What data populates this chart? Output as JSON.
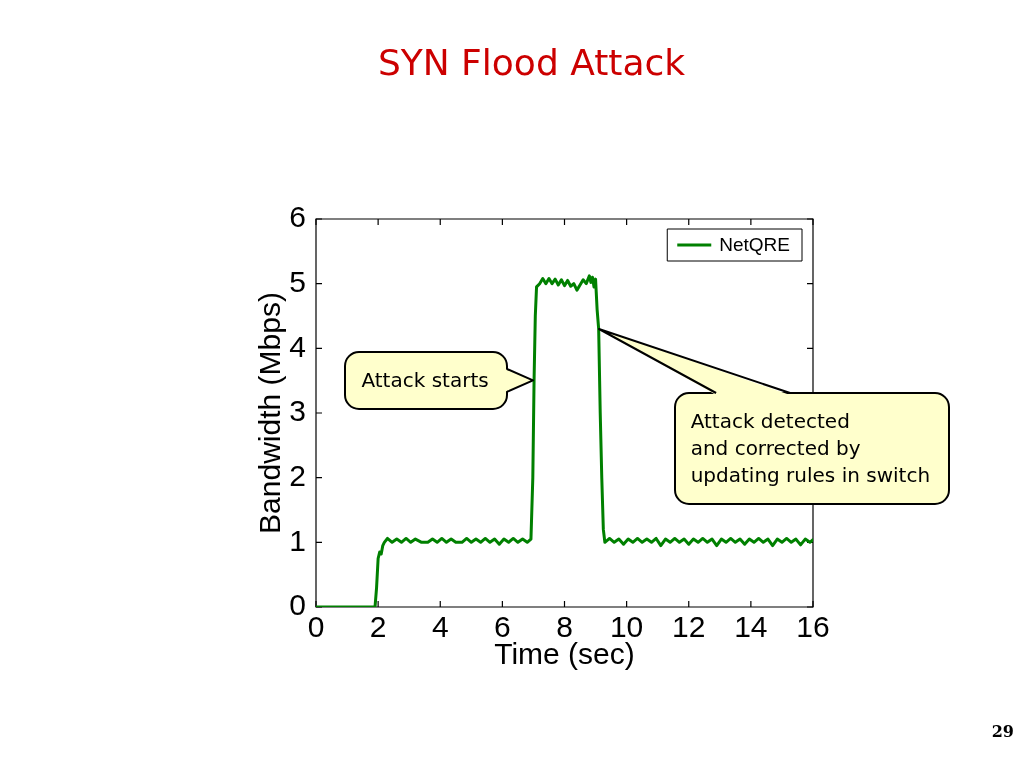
{
  "chart_data": {
    "type": "line",
    "title": "SYN Flood Attack",
    "xlabel": "Time (sec)",
    "ylabel": "Bandwidth (Mbps)",
    "x": [
      0,
      1.9,
      1.95,
      2.0,
      2.05,
      2.1,
      2.15,
      2.2,
      2.3,
      2.45,
      2.6,
      2.75,
      2.9,
      3.05,
      3.2,
      3.4,
      3.6,
      3.75,
      3.9,
      4.05,
      4.2,
      4.35,
      4.5,
      4.7,
      4.85,
      5.0,
      5.15,
      5.3,
      5.45,
      5.6,
      5.75,
      5.9,
      6.05,
      6.2,
      6.35,
      6.5,
      6.65,
      6.8,
      6.92,
      6.98,
      7.02,
      7.06,
      7.1,
      7.2,
      7.3,
      7.4,
      7.5,
      7.6,
      7.7,
      7.8,
      7.9,
      8.0,
      8.1,
      8.2,
      8.3,
      8.4,
      8.5,
      8.6,
      8.7,
      8.8,
      8.85,
      8.9,
      8.95,
      9.0,
      9.05,
      9.1,
      9.15,
      9.2,
      9.25,
      9.3,
      9.45,
      9.6,
      9.75,
      9.9,
      10.05,
      10.2,
      10.35,
      10.5,
      10.65,
      10.8,
      10.95,
      11.1,
      11.25,
      11.4,
      11.55,
      11.7,
      11.85,
      12.0,
      12.15,
      12.3,
      12.45,
      12.6,
      12.75,
      12.9,
      13.05,
      13.2,
      13.35,
      13.5,
      13.65,
      13.8,
      13.95,
      14.1,
      14.25,
      14.4,
      14.55,
      14.7,
      14.85,
      15.0,
      15.15,
      15.3,
      15.45,
      15.6,
      15.75,
      15.9,
      16
    ],
    "series": [
      {
        "name": "NetQRE",
        "color": "#008000",
        "values": [
          0,
          0,
          0.3,
          0.75,
          0.85,
          0.82,
          0.95,
          1.0,
          1.06,
          1.0,
          1.05,
          1.0,
          1.06,
          1.0,
          1.05,
          1.0,
          1.0,
          1.05,
          1.0,
          1.06,
          1.0,
          1.05,
          1.0,
          1.0,
          1.06,
          1.0,
          1.05,
          1.0,
          1.06,
          1.0,
          1.05,
          0.97,
          1.05,
          1.0,
          1.06,
          1.0,
          1.05,
          1.0,
          1.05,
          2.0,
          3.5,
          4.5,
          4.95,
          5.0,
          5.08,
          5.0,
          5.08,
          5.0,
          5.07,
          4.98,
          5.06,
          4.97,
          5.05,
          4.96,
          5.0,
          4.9,
          4.98,
          5.06,
          5.0,
          5.12,
          5.02,
          5.1,
          4.95,
          5.07,
          4.6,
          4.3,
          3.0,
          2.0,
          1.2,
          1.0,
          1.06,
          1.0,
          1.05,
          0.97,
          1.05,
          1.0,
          1.06,
          1.0,
          1.05,
          1.0,
          1.06,
          0.95,
          1.05,
          1.0,
          1.06,
          1.0,
          1.05,
          0.97,
          1.05,
          1.0,
          1.06,
          1.0,
          1.05,
          0.95,
          1.05,
          1.0,
          1.06,
          1.0,
          1.05,
          0.97,
          1.05,
          1.0,
          1.06,
          1.0,
          1.05,
          0.95,
          1.05,
          1.0,
          1.06,
          1.0,
          1.05,
          0.96,
          1.05,
          1.0,
          1.04
        ]
      }
    ],
    "xlim": [
      0,
      16
    ],
    "ylim": [
      0,
      6
    ],
    "xticks": [
      0,
      2,
      4,
      6,
      8,
      10,
      12,
      14,
      16
    ],
    "yticks": [
      0,
      1,
      2,
      3,
      4,
      5,
      6
    ],
    "legend": "top right",
    "marker": "none",
    "line_style": "solid",
    "annotations": [
      {
        "text": "Attack starts",
        "x": 7,
        "y": 3.5
      },
      {
        "text": "Attack detected\nand corrected by\nupdating rules in switch",
        "x": 9.1,
        "y": 4.3
      },
      "29"
    ]
  }
}
